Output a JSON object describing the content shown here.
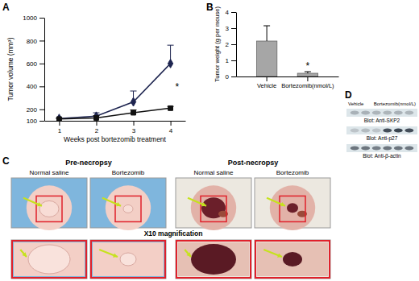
{
  "panel_labels": [
    "A",
    "B",
    "C",
    "D"
  ],
  "chart_data": [
    {
      "type": "line",
      "xlabel": "Weeks post bortezomib treatment",
      "ylabel": "Tumor volume (mm³)",
      "categories": [
        "1",
        "2",
        "3",
        "4"
      ],
      "ylim": [
        100,
        1000
      ],
      "yticks": [
        100,
        200,
        400,
        600,
        800,
        1000
      ],
      "series": [
        {
          "color": "#1e2550",
          "marker": "diamond",
          "values": [
            120,
            140,
            265,
            600
          ],
          "errors": [
            5,
            30,
            95,
            160
          ]
        },
        {
          "color": "#111111",
          "marker": "square",
          "values": [
            115,
            125,
            170,
            210
          ],
          "errors": [
            5,
            20,
            25,
            15
          ]
        }
      ],
      "annotations": [
        "*"
      ]
    },
    {
      "type": "bar",
      "ylabel": "Tumor weight (g per mouse)",
      "categories": [
        "Vehicle",
        "Bortezomib(nmol/L)"
      ],
      "values": [
        2.2,
        0.2
      ],
      "errors": [
        0.95,
        0.1
      ],
      "color": "#a6a6a6",
      "ylim": [
        0,
        4
      ],
      "yticks": [
        0,
        1,
        2,
        3,
        4
      ],
      "annotations": [
        "*"
      ]
    }
  ],
  "panel_c": {
    "headers": [
      "Pre-necropsy",
      "Post-necropsy"
    ],
    "photo_labels": [
      "Normal saline",
      "Bortezomib",
      "Normal saline",
      "Bortezomib"
    ],
    "magnification": "X10 magnification"
  },
  "panel_d": {
    "groups": [
      "Vehicle",
      "Bortezomib(nmol/L)"
    ],
    "blots": [
      {
        "label": "Blot: Anti-SKP2",
        "intensities": [
          0.3,
          0.3,
          0.28,
          0.28,
          0.3,
          0.28
        ]
      },
      {
        "label": "Blot: Anti-p27",
        "intensities": [
          0.2,
          0.25,
          0.2,
          0.8,
          0.85,
          0.8
        ]
      },
      {
        "label": "Blot: Anti-β-actin",
        "intensities": [
          0.6,
          0.6,
          0.55,
          0.6,
          0.6,
          0.6
        ]
      }
    ]
  }
}
